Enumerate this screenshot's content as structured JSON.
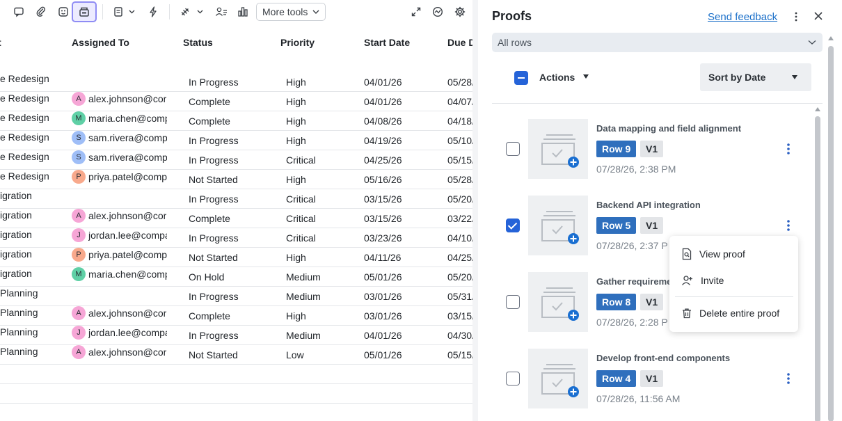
{
  "toolbar": {
    "more_tools_label": "More tools",
    "icons": [
      "comment-icon",
      "attachment-icon",
      "emoji-grid-icon",
      "proof-icon",
      "form-icon",
      "automation-icon",
      "connector-icon",
      "people-icon",
      "chart-icon",
      "expand-icon",
      "activity-icon",
      "settings-icon"
    ]
  },
  "grid": {
    "headers": {
      "task": "t",
      "assigned_to": "Assigned To",
      "status": "Status",
      "priority": "Priority",
      "start_date": "Start Date",
      "due_date": "Due D"
    },
    "rows": [
      {
        "task": "e Redesign",
        "assignee": "",
        "initial": "",
        "avatar_color": "",
        "status": "In Progress",
        "priority": "High",
        "start": "04/01/26",
        "due": "05/28/"
      },
      {
        "task": "e Redesign",
        "assignee": "alex.johnson@cor",
        "initial": "A",
        "avatar_color": "#f6a6d6",
        "status": "Complete",
        "priority": "High",
        "start": "04/01/26",
        "due": "04/07/"
      },
      {
        "task": "e Redesign",
        "assignee": "maria.chen@comp",
        "initial": "M",
        "avatar_color": "#5fd0a6",
        "status": "Complete",
        "priority": "High",
        "start": "04/08/26",
        "due": "04/18/"
      },
      {
        "task": "e Redesign",
        "assignee": "sam.rivera@comp",
        "initial": "S",
        "avatar_color": "#9fbef7",
        "status": "In Progress",
        "priority": "High",
        "start": "04/19/26",
        "due": "05/10/"
      },
      {
        "task": "e Redesign",
        "assignee": "sam.rivera@comp",
        "initial": "S",
        "avatar_color": "#9fbef7",
        "status": "In Progress",
        "priority": "Critical",
        "start": "04/25/26",
        "due": "05/15/"
      },
      {
        "task": "e Redesign",
        "assignee": "priya.patel@comp",
        "initial": "P",
        "avatar_color": "#f8a98c",
        "status": "Not Started",
        "priority": "High",
        "start": "05/16/26",
        "due": "05/28/"
      },
      {
        "task": "igration",
        "assignee": "",
        "initial": "",
        "avatar_color": "",
        "status": "In Progress",
        "priority": "Critical",
        "start": "03/15/26",
        "due": "05/20/"
      },
      {
        "task": "igration",
        "assignee": "alex.johnson@cor",
        "initial": "A",
        "avatar_color": "#f6a6d6",
        "status": "Complete",
        "priority": "Critical",
        "start": "03/15/26",
        "due": "03/22/"
      },
      {
        "task": "igration",
        "assignee": "jordan.lee@compa",
        "initial": "J",
        "avatar_color": "#f6a6d6",
        "status": "In Progress",
        "priority": "Critical",
        "start": "03/23/26",
        "due": "04/10/"
      },
      {
        "task": "igration",
        "assignee": "priya.patel@comp",
        "initial": "P",
        "avatar_color": "#f8a98c",
        "status": "Not Started",
        "priority": "High",
        "start": "04/11/26",
        "due": "04/25/"
      },
      {
        "task": "igration",
        "assignee": "maria.chen@comp",
        "initial": "M",
        "avatar_color": "#5fd0a6",
        "status": "On Hold",
        "priority": "Medium",
        "start": "05/01/26",
        "due": "05/20/"
      },
      {
        "task": "Planning",
        "assignee": "",
        "initial": "",
        "avatar_color": "",
        "status": "In Progress",
        "priority": "Medium",
        "start": "03/01/26",
        "due": "05/31/"
      },
      {
        "task": "Planning",
        "assignee": "alex.johnson@cor",
        "initial": "A",
        "avatar_color": "#f6a6d6",
        "status": "Complete",
        "priority": "High",
        "start": "03/01/26",
        "due": "03/15/"
      },
      {
        "task": "Planning",
        "assignee": "jordan.lee@compa",
        "initial": "J",
        "avatar_color": "#f6a6d6",
        "status": "In Progress",
        "priority": "Medium",
        "start": "04/01/26",
        "due": "04/30/"
      },
      {
        "task": "Planning",
        "assignee": "alex.johnson@cor",
        "initial": "A",
        "avatar_color": "#f6a6d6",
        "status": "Not Started",
        "priority": "Low",
        "start": "05/01/26",
        "due": "05/15/"
      }
    ]
  },
  "panel": {
    "title": "Proofs",
    "feedback_label": "Send feedback",
    "filter_value": "All rows",
    "actions_label": "Actions",
    "sort_label": "Sort by Date",
    "proofs": [
      {
        "title": "Data mapping and field alignment",
        "row": "Row 9",
        "version": "V1",
        "date": "07/28/26, 2:38 PM",
        "checked": false
      },
      {
        "title": "Backend API integration",
        "row": "Row 5",
        "version": "V1",
        "date": "07/28/26, 2:37 P",
        "checked": true
      },
      {
        "title": "Gather requireme",
        "row": "Row 8",
        "version": "V1",
        "date": "07/28/26, 2:28 P",
        "checked": false
      },
      {
        "title": "Develop front-end components",
        "row": "Row 4",
        "version": "V1",
        "date": "07/28/26, 11:56 AM",
        "checked": false
      }
    ]
  },
  "context_menu": {
    "view_proof": "View proof",
    "invite": "Invite",
    "delete": "Delete entire proof"
  },
  "colors": {
    "accent": "#2563d8",
    "row_badge": "#2f6fbd",
    "active_tool_border": "#8f8cf4"
  }
}
